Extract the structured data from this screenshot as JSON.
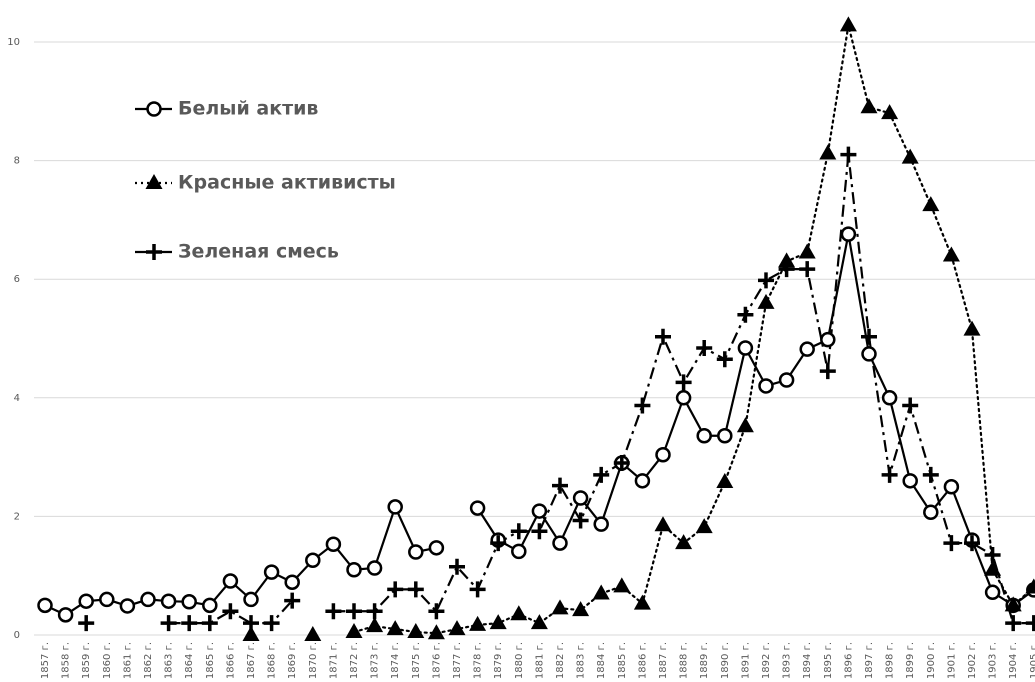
{
  "chart_data": {
    "type": "line",
    "categories": [
      "1857 г.",
      "1858 г.",
      "1859 г.",
      "1860 г.",
      "1861 г.",
      "1862 г.",
      "1863 г.",
      "1864 г.",
      "1865 г.",
      "1866 г.",
      "1867 г.",
      "1868 г.",
      "1869 г.",
      "1870 г.",
      "1871 г.",
      "1872 г.",
      "1873 г.",
      "1874 г.",
      "1875 г.",
      "1876 г.",
      "1877 г.",
      "1878 г.",
      "1879 г.",
      "1880 г.",
      "1881 г.",
      "1882 г.",
      "1883 г.",
      "1884 г.",
      "1885 г.",
      "1886 г.",
      "1887 г.",
      "1888 г.",
      "1889 г.",
      "1890 г.",
      "1891 г.",
      "1892 г.",
      "1893 г.",
      "1894 г.",
      "1895 г.",
      "1896 г.",
      "1897 г.",
      "1898 г.",
      "1899 г.",
      "1900 г.",
      "1901 г.",
      "1902 г.",
      "1903 г.",
      "1904 г.",
      "1905 г."
    ],
    "series": [
      {
        "name": "Белый актив",
        "color": "#000000",
        "marker": "circle",
        "dash": "solid",
        "values": [
          0.5,
          0.34,
          0.57,
          0.6,
          0.49,
          0.6,
          0.57,
          0.56,
          0.5,
          0.91,
          0.6,
          1.06,
          0.89,
          1.26,
          1.53,
          1.1,
          1.13,
          2.16,
          1.4,
          1.47,
          null,
          2.14,
          1.6,
          1.41,
          2.09,
          1.55,
          2.31,
          1.87,
          2.9,
          2.6,
          3.04,
          4.0,
          3.36,
          3.36,
          4.84,
          4.2,
          4.3,
          4.82,
          4.98,
          6.76,
          4.74,
          4.0,
          2.6,
          2.07,
          2.5,
          1.6,
          0.72,
          0.5,
          0.76
        ]
      },
      {
        "name": "Красные активисты",
        "color": "#000000",
        "marker": "triangle",
        "dash": "dotted",
        "values": [
          null,
          null,
          null,
          null,
          null,
          null,
          null,
          null,
          null,
          null,
          0.0,
          null,
          null,
          0.0,
          null,
          0.05,
          0.15,
          0.1,
          0.05,
          0.03,
          0.1,
          0.17,
          0.2,
          0.35,
          0.2,
          0.45,
          0.42,
          0.7,
          0.82,
          0.53,
          1.85,
          1.55,
          1.82,
          2.58,
          3.52,
          5.6,
          6.3,
          6.45,
          8.12,
          10.28,
          8.9,
          8.8,
          8.05,
          7.25,
          6.4,
          5.15,
          1.1,
          0.5,
          0.8
        ]
      },
      {
        "name": "Зеленая смесь",
        "color": "#000000",
        "marker": "plus",
        "dash": "dashdot",
        "values": [
          null,
          null,
          0.2,
          null,
          null,
          null,
          0.2,
          0.2,
          0.2,
          0.4,
          0.2,
          0.2,
          0.58,
          null,
          0.4,
          0.4,
          0.4,
          0.77,
          0.77,
          0.4,
          1.15,
          0.77,
          1.55,
          1.75,
          1.75,
          2.52,
          1.93,
          2.7,
          2.9,
          3.87,
          5.03,
          4.26,
          4.84,
          4.65,
          5.4,
          5.98,
          6.17,
          6.17,
          4.45,
          8.1,
          5.03,
          2.7,
          3.87,
          2.7,
          1.55,
          1.55,
          1.35,
          0.2,
          0.2
        ]
      }
    ],
    "ylim": [
      0,
      10
    ],
    "yticks": [
      0,
      2,
      4,
      6,
      8,
      10
    ],
    "grid": true,
    "legend": "upper-left"
  }
}
